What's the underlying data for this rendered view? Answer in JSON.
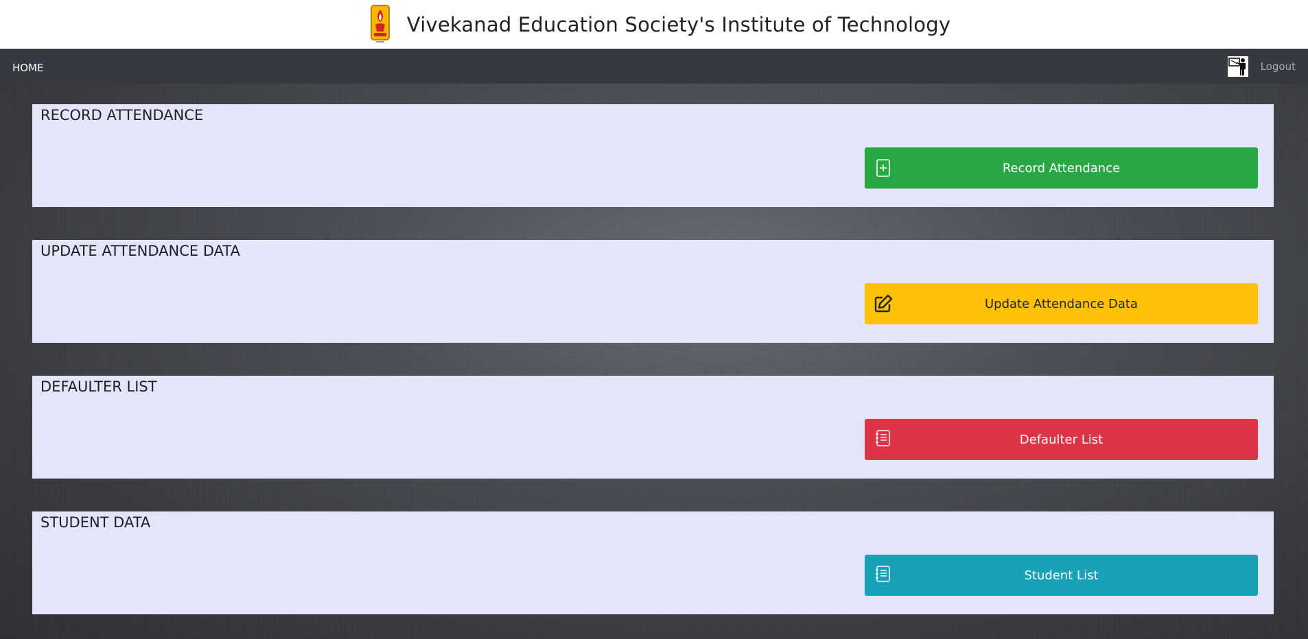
{
  "header": {
    "title": "Vivekanad Education Society's Institute of Technology",
    "logo_icon": "ves-logo-icon"
  },
  "nav": {
    "home_label": "HOME",
    "logout_label": "Logout",
    "user_icon": "teacher-icon"
  },
  "sections": [
    {
      "title": "RECORD ATTENDANCE",
      "button_label": "Record Attendance",
      "icon": "add-document-icon",
      "color": "#28a745"
    },
    {
      "title": "UPDATE ATTENDANCE DATA",
      "button_label": "Update Attendance Data",
      "icon": "edit-icon",
      "color": "#ffc107"
    },
    {
      "title": "DEFAULTER LIST",
      "button_label": "Defaulter List",
      "icon": "notebook-list-icon",
      "color": "#dc3545"
    },
    {
      "title": "STUDENT DATA",
      "button_label": "Student List",
      "icon": "notebook-list-icon",
      "color": "#17a2b8"
    }
  ]
}
